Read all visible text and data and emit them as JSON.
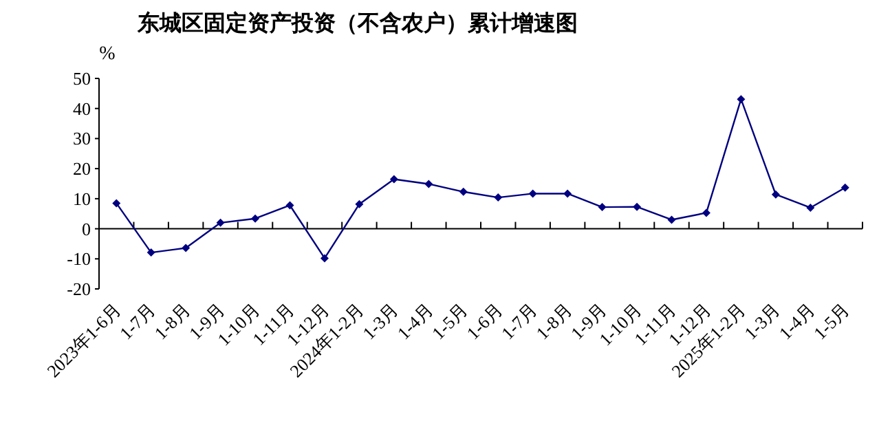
{
  "chart_data": {
    "type": "line",
    "title": "东城区固定资产投资（不含农户）累计增速图",
    "ylabel": "%",
    "categories": [
      "2023年1-6月",
      "1-7月",
      "1-8月",
      "1-9月",
      "1-10月",
      "1-11月",
      "1-12月",
      "2024年1-2月",
      "1-3月",
      "1-4月",
      "1-5月",
      "1-6月",
      "1-7月",
      "1-8月",
      "1-9月",
      "1-10月",
      "1-11月",
      "1-12月",
      "2025年1-2月",
      "1-3月",
      "1-4月",
      "1-5月"
    ],
    "series": [
      {
        "color": "#000080",
        "values": [
          8.5,
          -7.9,
          -6.4,
          2.0,
          3.4,
          7.8,
          -9.8,
          8.2,
          16.5,
          14.9,
          12.3,
          10.4,
          11.7,
          11.7,
          7.2,
          7.3,
          3.0,
          5.3,
          43.1,
          11.4,
          7.0,
          13.7
        ]
      }
    ],
    "ylim": [
      -20,
      50
    ],
    "yticks": [
      -20,
      -10,
      0,
      10,
      20,
      30,
      40,
      50
    ],
    "marker": "diamond",
    "line_style": "solid"
  }
}
